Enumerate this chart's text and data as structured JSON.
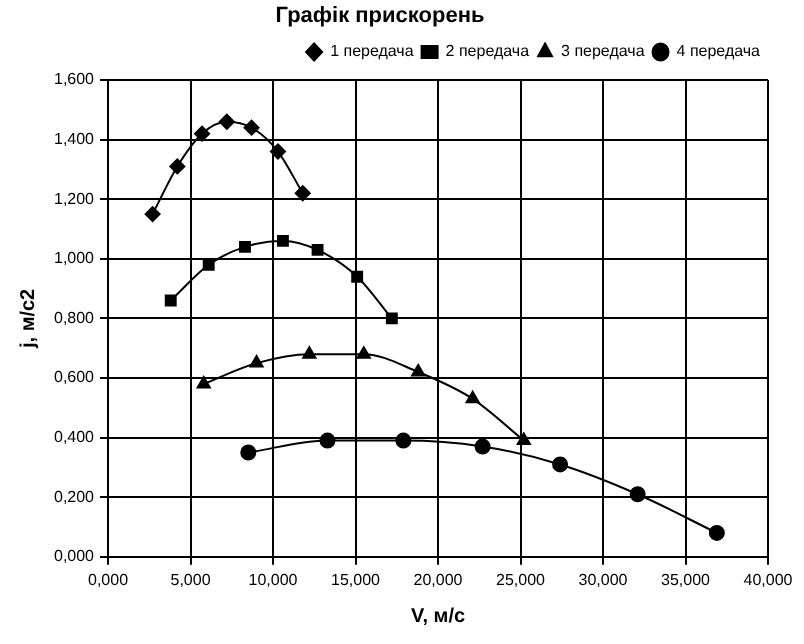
{
  "chart_data": {
    "type": "line",
    "title": "Графік прискорень",
    "xlabel": "V, м/с",
    "ylabel": "j, м/с2",
    "xlim": [
      0,
      40
    ],
    "ylim": [
      0,
      1.6
    ],
    "xticks": [
      {
        "value": 0,
        "label": "0,000"
      },
      {
        "value": 5,
        "label": "5,000"
      },
      {
        "value": 10,
        "label": "10,000"
      },
      {
        "value": 15,
        "label": "15,000"
      },
      {
        "value": 20,
        "label": "20,000"
      },
      {
        "value": 25,
        "label": "25,000"
      },
      {
        "value": 30,
        "label": "30,000"
      },
      {
        "value": 35,
        "label": "35,000"
      },
      {
        "value": 40,
        "label": "40,000"
      }
    ],
    "yticks": [
      {
        "value": 0,
        "label": "0,000"
      },
      {
        "value": 0.2,
        "label": "0,200"
      },
      {
        "value": 0.4,
        "label": "0,400"
      },
      {
        "value": 0.6,
        "label": "0,600"
      },
      {
        "value": 0.8,
        "label": "0,800"
      },
      {
        "value": 1,
        "label": "1,000"
      },
      {
        "value": 1.2,
        "label": "1,200"
      },
      {
        "value": 1.4,
        "label": "1,400"
      },
      {
        "value": 1.6,
        "label": "1,600"
      }
    ],
    "grid": true,
    "legend": "top right",
    "series": [
      {
        "name": "1 передача",
        "color": "#000000",
        "marker": "diamond",
        "x": [
          2.7,
          4.2,
          5.7,
          7.2,
          8.7,
          10.3,
          11.8
        ],
        "values": [
          1.15,
          1.31,
          1.42,
          1.46,
          1.44,
          1.36,
          1.22
        ]
      },
      {
        "name": "2 передача",
        "color": "#000000",
        "marker": "square",
        "x": [
          3.8,
          6.1,
          8.3,
          10.6,
          12.7,
          15.1,
          17.2
        ],
        "values": [
          0.86,
          0.98,
          1.04,
          1.06,
          1.03,
          0.94,
          0.8
        ]
      },
      {
        "name": "3 передача",
        "color": "#000000",
        "marker": "triangle",
        "x": [
          5.8,
          9.0,
          12.2,
          15.5,
          18.8,
          22.1,
          25.2
        ],
        "values": [
          0.58,
          0.65,
          0.68,
          0.68,
          0.62,
          0.53,
          0.39
        ]
      },
      {
        "name": "4 передача",
        "color": "#000000",
        "marker": "circle",
        "x": [
          8.5,
          13.3,
          17.9,
          22.7,
          27.4,
          32.1,
          36.9
        ],
        "values": [
          0.35,
          0.39,
          0.39,
          0.37,
          0.31,
          0.21,
          0.08
        ]
      }
    ]
  }
}
